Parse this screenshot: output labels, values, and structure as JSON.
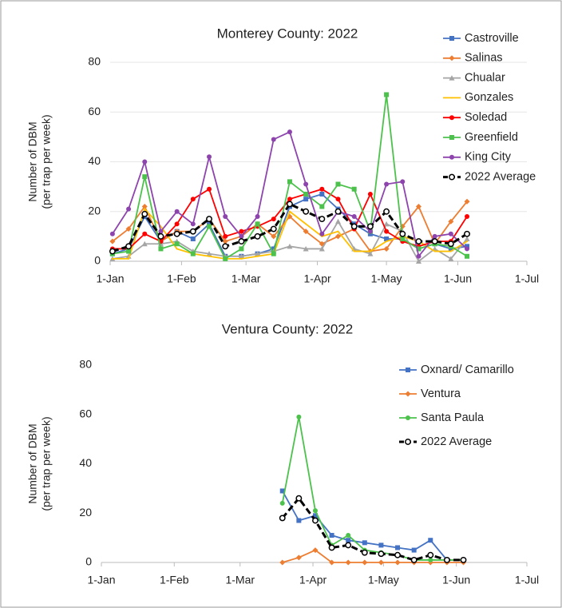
{
  "chart_data": [
    {
      "type": "line",
      "title": "Monterey County: 2022",
      "y_label": [
        "Number of DBM",
        "(per trap per week)"
      ],
      "x": [
        1,
        8,
        15,
        22,
        29,
        36,
        43,
        50,
        57,
        64,
        71,
        78,
        85,
        92,
        99,
        106,
        113,
        120,
        127,
        134,
        141,
        148,
        155
      ],
      "xlim": [
        0,
        181
      ],
      "xticks": [
        {
          "value": 0,
          "label": "1-Jan"
        },
        {
          "value": 31,
          "label": "1-Feb"
        },
        {
          "value": 59,
          "label": "1-Mar"
        },
        {
          "value": 90,
          "label": "1-Apr"
        },
        {
          "value": 120,
          "label": "1-May"
        },
        {
          "value": 151,
          "label": "1-Jun"
        },
        {
          "value": 181,
          "label": "1-Jul"
        }
      ],
      "ylim": [
        0,
        80
      ],
      "yticks": [
        0,
        20,
        40,
        60,
        80
      ],
      "grid": true,
      "legend": "right",
      "series": [
        {
          "name": "Castroville",
          "color": "#4472c4",
          "marker": "square",
          "values": [
            3,
            5,
            18,
            8,
            12,
            9,
            15,
            2,
            2,
            3,
            5,
            22,
            25,
            27,
            21,
            15,
            11,
            9,
            9,
            5,
            7,
            5,
            6
          ]
        },
        {
          "name": "Salinas",
          "color": "#ed7d31",
          "marker": "diamond",
          "values": [
            8,
            13,
            22,
            8,
            12,
            12,
            17,
            8,
            10,
            15,
            10,
            18,
            12,
            7,
            10,
            13,
            4,
            5,
            14,
            22,
            7,
            16,
            24
          ]
        },
        {
          "name": "Chualar",
          "color": "#a5a5a5",
          "marker": "triangle",
          "values": [
            1,
            2,
            7,
            7,
            8,
            4,
            3,
            2,
            2,
            3,
            4,
            6,
            5,
            5,
            16,
            5,
            3,
            15,
            12,
            0,
            5,
            1,
            9
          ]
        },
        {
          "name": "Gonzales",
          "color": "#ffc000",
          "marker": "none",
          "values": [
            1,
            1,
            21,
            14,
            5,
            3,
            2,
            1,
            1,
            2,
            3,
            20,
            15,
            10,
            12,
            4,
            4,
            8,
            10,
            8,
            4,
            4,
            8
          ]
        },
        {
          "name": "Soledad",
          "color": "#ff0000",
          "marker": "circle",
          "values": [
            5,
            5,
            11,
            8,
            15,
            25,
            29,
            10,
            12,
            14,
            17,
            25,
            27,
            29,
            25,
            13,
            27,
            12,
            8,
            6,
            8,
            8,
            18
          ]
        },
        {
          "name": "Greenfield",
          "color": "#4cc24c",
          "marker": "square",
          "values": [
            3,
            4,
            34,
            5,
            7,
            3,
            14,
            1,
            5,
            15,
            3,
            32,
            27,
            22,
            31,
            29,
            12,
            67,
            9,
            5,
            7,
            6,
            2
          ]
        },
        {
          "name": "King City",
          "color": "#8e44ad",
          "marker": "circle",
          "values": [
            11,
            21,
            40,
            12,
            20,
            15,
            42,
            18,
            10,
            18,
            49,
            52,
            31,
            11,
            20,
            18,
            12,
            31,
            32,
            2,
            10,
            11,
            5
          ]
        },
        {
          "name": "2022 Average",
          "color": "#000000",
          "marker": "open",
          "dashed": true,
          "values": [
            4,
            6,
            19,
            10,
            11,
            12,
            17,
            6,
            8,
            10,
            13,
            23,
            20,
            17,
            20,
            14,
            14,
            20,
            11,
            8,
            8,
            7,
            11
          ]
        }
      ]
    },
    {
      "type": "line",
      "title": "Ventura County: 2022",
      "y_label": [
        "Number of DBM",
        "(per trap per week)"
      ],
      "x": [
        77,
        84,
        91,
        98,
        105,
        112,
        119,
        126,
        133,
        140,
        147,
        154
      ],
      "xlim": [
        0,
        181
      ],
      "xticks": [
        {
          "value": 0,
          "label": "1-Jan"
        },
        {
          "value": 31,
          "label": "1-Feb"
        },
        {
          "value": 59,
          "label": "1-Mar"
        },
        {
          "value": 90,
          "label": "1-Apr"
        },
        {
          "value": 120,
          "label": "1-May"
        },
        {
          "value": 151,
          "label": "1-Jun"
        },
        {
          "value": 181,
          "label": "1-Jul"
        }
      ],
      "ylim": [
        0,
        80
      ],
      "yticks": [
        0,
        20,
        40,
        60,
        80
      ],
      "grid": false,
      "legend": "right",
      "series": [
        {
          "name": "Oxnard/ Camarillo",
          "color": "#4472c4",
          "marker": "square",
          "values": [
            29,
            17,
            19,
            11,
            9,
            8,
            7,
            6,
            5,
            9,
            1,
            1
          ]
        },
        {
          "name": "Ventura",
          "color": "#ed7d31",
          "marker": "diamond",
          "values": [
            0,
            2,
            5,
            0,
            0,
            0,
            0,
            0,
            0,
            0,
            0,
            0
          ]
        },
        {
          "name": "Santa Paula",
          "color": "#4cc24c",
          "marker": "circle",
          "values": [
            24,
            59,
            21,
            7,
            11,
            5,
            4,
            3,
            1,
            1,
            1,
            1
          ]
        },
        {
          "name": "2022 Average",
          "color": "#000000",
          "marker": "open",
          "dashed": true,
          "values": [
            18,
            26,
            17,
            6,
            7,
            4,
            3.5,
            3,
            1,
            3,
            1,
            1
          ]
        }
      ]
    }
  ]
}
